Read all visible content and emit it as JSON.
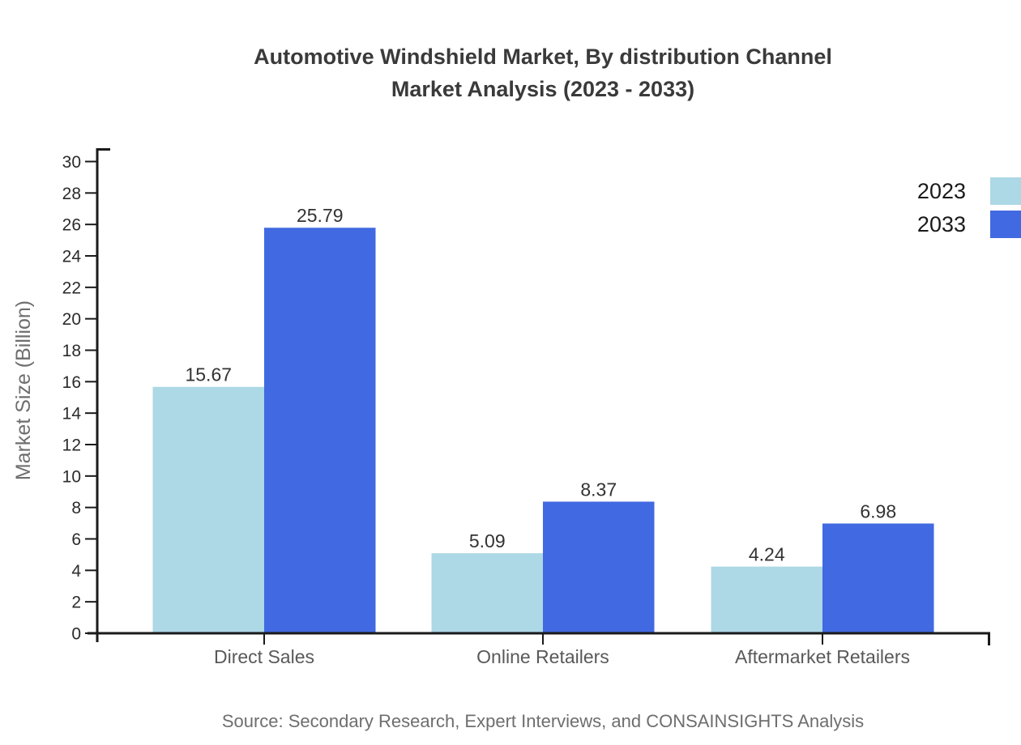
{
  "title": {
    "line1": "Automotive Windshield Market, By distribution Channel",
    "line2": "Market Analysis (2023 - 2033)"
  },
  "source": "Source: Secondary Research, Expert Interviews, and CONSAINSIGHTS Analysis",
  "colors": {
    "series_2023": "#ADD8E6",
    "series_2033": "#4169E1",
    "axis": "#1a1a1a",
    "title_text": "#3a3a3a",
    "tick_text": "#2b2b2b",
    "value_text": "#333333",
    "category_text": "#595959",
    "muted_text": "#6e6e6e"
  },
  "chart_data": {
    "type": "bar",
    "title": "Automotive Windshield Market, By distribution Channel Market Analysis (2023 - 2033)",
    "categories": [
      "Direct Sales",
      "Online Retailers",
      "Aftermarket Retailers"
    ],
    "series": [
      {
        "name": "2023",
        "color": "#ADD8E6",
        "values": [
          15.67,
          5.09,
          4.24
        ]
      },
      {
        "name": "2033",
        "color": "#4169E1",
        "values": [
          25.79,
          8.37,
          6.98
        ]
      }
    ],
    "xlabel": "",
    "ylabel": "Market Size (Billion)",
    "ylim": [
      0,
      30
    ],
    "ytick_step": 2,
    "grid": false,
    "legend_position": "top-right",
    "value_labels": true,
    "value_label_decimals": 2
  }
}
